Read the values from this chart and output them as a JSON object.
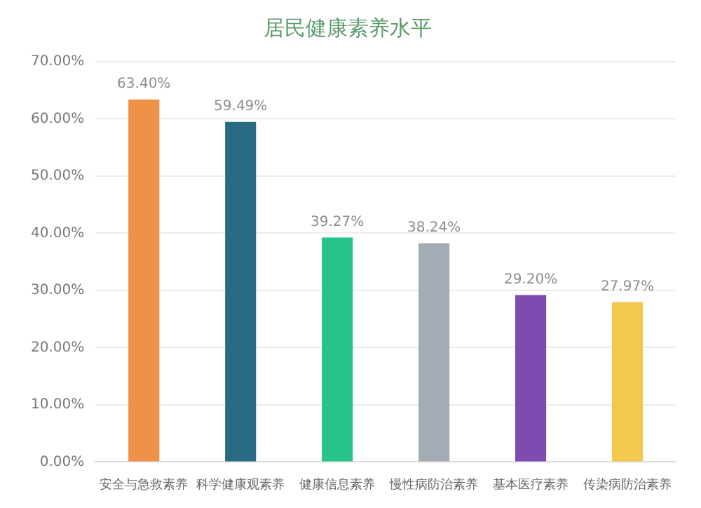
{
  "chart_data": {
    "type": "bar",
    "title": "居民健康素养水平",
    "categories": [
      "安全与急救素养",
      "科学健康观素养",
      "健康信息素养",
      "慢性病防治素养",
      "基本医疗素养",
      "传染病防治素养"
    ],
    "values": [
      63.4,
      59.49,
      39.27,
      38.24,
      29.2,
      27.97
    ],
    "value_labels": [
      "63.40%",
      "59.49%",
      "39.27%",
      "38.24%",
      "29.20%",
      "27.97%"
    ],
    "colors": [
      "#f0914a",
      "#276a82",
      "#27c48a",
      "#a3abb5",
      "#7e4bb0",
      "#f2c84f"
    ],
    "ylim": [
      0,
      70
    ],
    "yticks": [
      {
        "value": 0,
        "label": "0.00%"
      },
      {
        "value": 10,
        "label": "10.00%"
      },
      {
        "value": 20,
        "label": "20.00%"
      },
      {
        "value": 30,
        "label": "30.00%"
      },
      {
        "value": 40,
        "label": "40.00%"
      },
      {
        "value": 50,
        "label": "50.00%"
      },
      {
        "value": 60,
        "label": "60.00%"
      },
      {
        "value": 70,
        "label": "70.00%"
      }
    ],
    "grid": "y",
    "legend": false
  }
}
